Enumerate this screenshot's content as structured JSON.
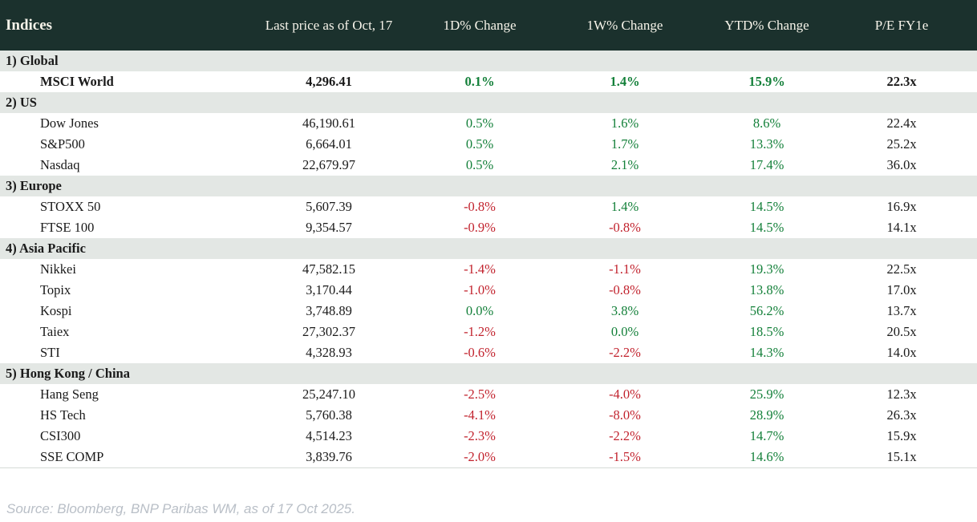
{
  "title": "Indices",
  "header": {
    "columns": [
      "Indices",
      "Last price as of Oct, 17",
      "1D% Change",
      "1W% Change",
      "YTD% Change",
      "P/E FY1e"
    ]
  },
  "sections": [
    {
      "label": "1) Global",
      "rows": [
        {
          "name": "MSCI World",
          "last_price": "4,296.41",
          "d1_change": "0.1%",
          "w1_change": "1.4%",
          "ytd_change": "15.9%",
          "pe_fy1e": "22.3x",
          "emphasis": true
        }
      ]
    },
    {
      "label": "2) US",
      "rows": [
        {
          "name": "Dow Jones",
          "last_price": "46,190.61",
          "d1_change": "0.5%",
          "w1_change": "1.6%",
          "ytd_change": "8.6%",
          "pe_fy1e": "22.4x",
          "emphasis": false
        },
        {
          "name": "S&P500",
          "last_price": "6,664.01",
          "d1_change": "0.5%",
          "w1_change": "1.7%",
          "ytd_change": "13.3%",
          "pe_fy1e": "25.2x",
          "emphasis": false
        },
        {
          "name": "Nasdaq",
          "last_price": "22,679.97",
          "d1_change": "0.5%",
          "w1_change": "2.1%",
          "ytd_change": "17.4%",
          "pe_fy1e": "36.0x",
          "emphasis": false
        }
      ]
    },
    {
      "label": "3) Europe",
      "rows": [
        {
          "name": "STOXX 50",
          "last_price": "5,607.39",
          "d1_change": "-0.8%",
          "w1_change": "1.4%",
          "ytd_change": "14.5%",
          "pe_fy1e": "16.9x",
          "emphasis": false
        },
        {
          "name": "FTSE 100",
          "last_price": "9,354.57",
          "d1_change": "-0.9%",
          "w1_change": "-0.8%",
          "ytd_change": "14.5%",
          "pe_fy1e": "14.1x",
          "emphasis": false
        }
      ]
    },
    {
      "label": "4) Asia Pacific",
      "rows": [
        {
          "name": "Nikkei",
          "last_price": "47,582.15",
          "d1_change": "-1.4%",
          "w1_change": "-1.1%",
          "ytd_change": "19.3%",
          "pe_fy1e": "22.5x",
          "emphasis": false
        },
        {
          "name": "Topix",
          "last_price": "3,170.44",
          "d1_change": "-1.0%",
          "w1_change": "-0.8%",
          "ytd_change": "13.8%",
          "pe_fy1e": "17.0x",
          "emphasis": false
        },
        {
          "name": "Kospi",
          "last_price": "3,748.89",
          "d1_change": "0.0%",
          "w1_change": "3.8%",
          "ytd_change": "56.2%",
          "pe_fy1e": "13.7x",
          "emphasis": false
        },
        {
          "name": "Taiex",
          "last_price": "27,302.37",
          "d1_change": "-1.2%",
          "w1_change": "0.0%",
          "ytd_change": "18.5%",
          "pe_fy1e": "20.5x",
          "emphasis": false
        },
        {
          "name": "STI",
          "last_price": "4,328.93",
          "d1_change": "-0.6%",
          "w1_change": "-2.2%",
          "ytd_change": "14.3%",
          "pe_fy1e": "14.0x",
          "emphasis": false
        }
      ]
    },
    {
      "label": "5) Hong Kong / China",
      "rows": [
        {
          "name": "Hang Seng",
          "last_price": "25,247.10",
          "d1_change": "-2.5%",
          "w1_change": "-4.0%",
          "ytd_change": "25.9%",
          "pe_fy1e": "12.3x",
          "emphasis": false
        },
        {
          "name": "HS Tech",
          "last_price": "5,760.38",
          "d1_change": "-4.1%",
          "w1_change": "-8.0%",
          "ytd_change": "28.9%",
          "pe_fy1e": "26.3x",
          "emphasis": false
        },
        {
          "name": "CSI300",
          "last_price": "4,514.23",
          "d1_change": "-2.3%",
          "w1_change": "-2.2%",
          "ytd_change": "14.7%",
          "pe_fy1e": "15.9x",
          "emphasis": false
        },
        {
          "name": "SSE COMP",
          "last_price": "3,839.76",
          "d1_change": "-2.0%",
          "w1_change": "-1.5%",
          "ytd_change": "14.6%",
          "pe_fy1e": "15.1x",
          "emphasis": false
        }
      ]
    }
  ],
  "footer": {
    "source": "Source: Bloomberg, BNP Paribas WM, as of 17 Oct 2025."
  },
  "colors": {
    "header_bg": "#1b312d",
    "header_text": "#f7f4ea",
    "section_bg": "#e3e7e4",
    "positive": "#14803a",
    "negative": "#c2232e",
    "body_text": "#1a1a1a",
    "source_text": "#b9bfc7"
  }
}
